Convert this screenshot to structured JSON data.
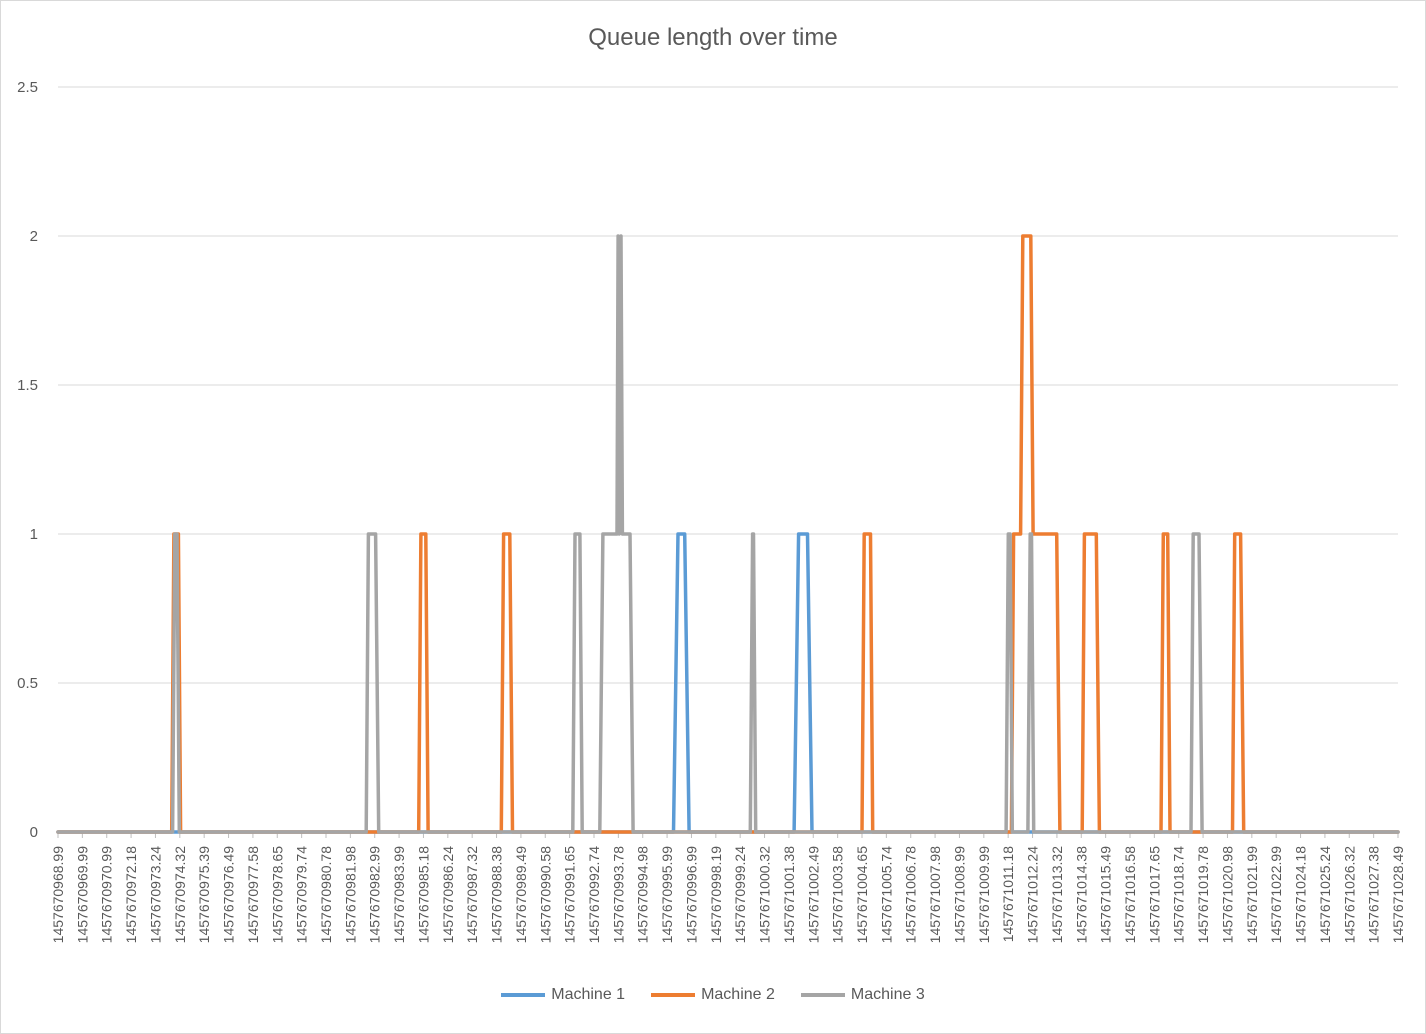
{
  "chart_data": {
    "type": "line",
    "title": "Queue length over time",
    "xlabel": "",
    "ylabel": "",
    "ylim": [
      0,
      2.5
    ],
    "yticks": [
      "0",
      "0.5",
      "1",
      "1.5",
      "2",
      "2.5"
    ],
    "grid": true,
    "legend_position": "bottom",
    "xlim": [
      1457670968.99,
      1457671028.99
    ],
    "xticks": [
      "1457670968.99",
      "1457670969.99",
      "1457670970.99",
      "1457670972.18",
      "1457670973.24",
      "1457670974.32",
      "1457670975.39",
      "1457670976.49",
      "1457670977.58",
      "1457670978.65",
      "1457670979.74",
      "1457670980.78",
      "1457670981.98",
      "1457670982.99",
      "1457670983.99",
      "1457670985.18",
      "1457670986.24",
      "1457670987.32",
      "1457670988.38",
      "1457670989.49",
      "1457670990.58",
      "1457670991.65",
      "1457670992.74",
      "1457670993.78",
      "1457670994.98",
      "1457670995.99",
      "1457670996.99",
      "1457670998.19",
      "1457670999.24",
      "1457671000.32",
      "1457671001.38",
      "1457671002.49",
      "1457671003.58",
      "1457671004.65",
      "1457671005.74",
      "1457671006.78",
      "1457671007.98",
      "1457671008.99",
      "1457671009.99",
      "1457671011.18",
      "1457671012.24",
      "1457671013.32",
      "1457671014.38",
      "1457671015.49",
      "1457671016.58",
      "1457671017.65",
      "1457671018.74",
      "1457671019.78",
      "1457671020.98",
      "1457671021.99",
      "1457671022.99",
      "1457671024.18",
      "1457671025.24",
      "1457671026.32",
      "1457671027.38",
      "1457671028.49"
    ],
    "series": [
      {
        "name": "Machine 1",
        "color": "#5B9BD5",
        "x": [
          1457670968.99,
          1457670996.55,
          1457670996.75,
          1457670997.05,
          1457670997.25,
          1457671001.95,
          1457671002.15,
          1457671002.55,
          1457671002.75,
          1457671028.99
        ],
        "values": [
          0,
          0,
          1,
          1,
          0,
          0,
          1,
          1,
          0,
          0
        ]
      },
      {
        "name": "Machine 2",
        "color": "#ED7D31",
        "x": [
          1457670968.99,
          1457670974.08,
          1457670974.18,
          1457670974.38,
          1457670974.48,
          1457670983.24,
          1457670983.38,
          1457670983.52,
          1457670983.66,
          1457670985.14,
          1457670985.24,
          1457670985.46,
          1457670985.56,
          1457670988.84,
          1457670988.94,
          1457670989.22,
          1457670989.34,
          1457670993.39,
          1457670993.49,
          1457670994.15,
          1457670994.25,
          1457671004.99,
          1457671005.09,
          1457671005.37,
          1457671005.47,
          1457671011.68,
          1457671011.78,
          1457671012.09,
          1457671012.19,
          1457671012.55,
          1457671012.65,
          1457671013.71,
          1457671013.85,
          1457671014.85,
          1457671014.95,
          1457671015.48,
          1457671015.62,
          1457671018.38,
          1457671018.48,
          1457671018.68,
          1457671018.78,
          1457671020.54,
          1457671020.64,
          1457671021.58,
          1457671021.68,
          1457671021.94,
          1457671022.08,
          1457671028.99
        ],
        "values": [
          0,
          0,
          1,
          1,
          0,
          0,
          0,
          0,
          0,
          0,
          1,
          1,
          0,
          0,
          1,
          1,
          0,
          0,
          0,
          0,
          0,
          0,
          1,
          1,
          0,
          0,
          1,
          1,
          2,
          2,
          1,
          1,
          0,
          0,
          1,
          1,
          0,
          0,
          1,
          1,
          0,
          0,
          0,
          0,
          1,
          1,
          0,
          0
        ]
      },
      {
        "name": "Machine 3",
        "color": "#A5A5A5",
        "x": [
          1457670968.99,
          1457670974.12,
          1457670974.22,
          1457670974.32,
          1457670974.42,
          1457670982.79,
          1457670982.89,
          1457670983.21,
          1457670983.35,
          1457670992.04,
          1457670992.14,
          1457670992.36,
          1457670992.46,
          1457670993.25,
          1457670993.39,
          1457670994.02,
          1457670994.07,
          1457670994.12,
          1457670994.2,
          1457670994.26,
          1457670994.32,
          1457670994.6,
          1457670994.74,
          1457670999.99,
          1457671000.09,
          1457671000.13,
          1457671000.23,
          1457671011.44,
          1457671011.54,
          1457671011.62,
          1457671011.72,
          1457671012.42,
          1457671012.52,
          1457671012.58,
          1457671012.68,
          1457671019.72,
          1457671019.82,
          1457671020.08,
          1457671020.22,
          1457671028.99
        ],
        "values": [
          0,
          0,
          1,
          1,
          0,
          0,
          1,
          1,
          0,
          0,
          1,
          1,
          0,
          0,
          1,
          1,
          2,
          1,
          2,
          1,
          1,
          1,
          0,
          0,
          1,
          1,
          0,
          0,
          1,
          1,
          0,
          0,
          1,
          1,
          0,
          0,
          1,
          1,
          0,
          0
        ]
      }
    ]
  }
}
